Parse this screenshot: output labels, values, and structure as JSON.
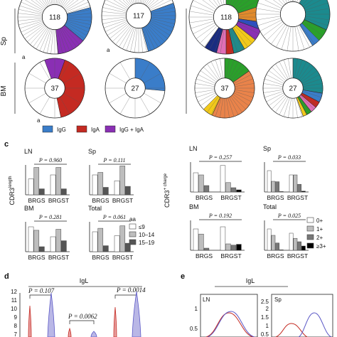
{
  "top": {
    "row_labels": [
      "Sp",
      "BM"
    ],
    "a_marks": [
      "a",
      "a",
      "a"
    ],
    "pie_counts": [
      "118",
      "117",
      "37",
      "27",
      "118",
      "37",
      "27"
    ],
    "legend": [
      {
        "label": "IgG",
        "color": "#3a7dc9"
      },
      {
        "label": "IgA",
        "color": "#c42a22"
      },
      {
        "label": "IgG + IgA",
        "color": "#8a2fb4"
      }
    ]
  },
  "panel_c": {
    "letter": "c",
    "left": {
      "ylabel": "CDR3",
      "ylabel_sup": "length",
      "subplots": [
        {
          "title": "LN",
          "pval": "P = 0.960",
          "categories": [
            "BRGS",
            "BRGST"
          ]
        },
        {
          "title": "Sp",
          "pval": "P = 0.111",
          "categories": [
            "BRGS",
            "BRGST"
          ]
        },
        {
          "title": "BM",
          "pval": "P = 0.281",
          "categories": [
            "BRGS",
            "BRGST"
          ]
        },
        {
          "title": "Total",
          "pval": "P = 0.061",
          "categories": [
            "BRGS",
            "BRGST"
          ]
        }
      ],
      "legend_title": "aa",
      "legend": [
        {
          "label": "≤9",
          "color": "#ffffff"
        },
        {
          "label": "10–14",
          "color": "#bdbdbd"
        },
        {
          "label": "15–19",
          "color": "#555555"
        }
      ]
    },
    "right": {
      "ylabel": "CDR3",
      "ylabel_sup": "+ charge",
      "subplots": [
        {
          "title": "LN",
          "pval": "P = 0.257",
          "categories": [
            "BRGS",
            "BRGST"
          ]
        },
        {
          "title": "Sp",
          "pval": "P = 0.033",
          "categories": [
            "BRGS",
            "BRGST"
          ]
        },
        {
          "title": "BM",
          "pval": "P = 0.192",
          "categories": [
            "BRGS",
            "BRGST"
          ]
        },
        {
          "title": "Total",
          "pval": "P = 0.025",
          "categories": [
            "BRGS",
            "BRGST"
          ]
        }
      ],
      "legend": [
        {
          "label": "0+",
          "color": "#ffffff"
        },
        {
          "label": "1+",
          "color": "#bdbdbd"
        },
        {
          "label": "2+",
          "color": "#777777"
        },
        {
          "label": "≥3+",
          "color": "#000000"
        }
      ]
    }
  },
  "panel_d": {
    "letter": "d",
    "title": "IgL",
    "pvals": [
      "P = 0.107",
      "P = 0.0062",
      "P = 0.0014"
    ],
    "yticks": [
      "12",
      "11",
      "10",
      "9",
      "8",
      "7"
    ]
  },
  "panel_e": {
    "letter": "e",
    "title": "IgL",
    "subplots": [
      {
        "title": "LN",
        "yticks": [
          "1",
          "0.5"
        ]
      },
      {
        "title": "Sp",
        "yticks": [
          "2.5",
          "2",
          "1.5",
          "1",
          "0.5"
        ]
      }
    ]
  },
  "chart_data": [
    {
      "panel": "c-left",
      "type": "bar",
      "title": "LN",
      "categories": [
        "BRGS",
        "BRGST"
      ],
      "series": [
        {
          "name": "≤9",
          "values": [
            32,
            40
          ]
        },
        {
          "name": "10–14",
          "values": [
            55,
            55
          ]
        },
        {
          "name": "15–19",
          "values": [
            12,
            12
          ]
        }
      ],
      "ylim": [
        0,
        60
      ]
    },
    {
      "panel": "c-left",
      "type": "bar",
      "title": "Sp",
      "categories": [
        "BRGS",
        "BRGST"
      ],
      "series": [
        {
          "name": "≤9",
          "values": [
            40,
            28
          ]
        },
        {
          "name": "10–14",
          "values": [
            45,
            58
          ]
        },
        {
          "name": "15–19",
          "values": [
            15,
            17
          ]
        }
      ],
      "ylim": [
        0,
        60
      ]
    },
    {
      "panel": "c-left",
      "type": "bar",
      "title": "BM",
      "categories": [
        "BRGS",
        "BRGST"
      ],
      "series": [
        {
          "name": "≤9",
          "values": [
            50,
            30
          ]
        },
        {
          "name": "10–14",
          "values": [
            43,
            45
          ]
        },
        {
          "name": "15–19",
          "values": [
            10,
            22
          ]
        }
      ],
      "ylim": [
        0,
        60
      ]
    },
    {
      "panel": "c-left",
      "type": "bar",
      "title": "Total",
      "categories": [
        "BRGS",
        "BRGST"
      ],
      "series": [
        {
          "name": "≤9",
          "values": [
            40,
            32
          ]
        },
        {
          "name": "10–14",
          "values": [
            47,
            52
          ]
        },
        {
          "name": "15–19",
          "values": [
            12,
            17
          ]
        }
      ],
      "ylim": [
        0,
        60
      ]
    },
    {
      "panel": "c-right",
      "type": "bar",
      "title": "LN",
      "categories": [
        "BRGS",
        "BRGST"
      ],
      "series": [
        {
          "name": "0+",
          "values": [
            45,
            62
          ]
        },
        {
          "name": "1+",
          "values": [
            40,
            22
          ]
        },
        {
          "name": "2+",
          "values": [
            15,
            10
          ]
        },
        {
          "name": "≥3+",
          "values": [
            0,
            5
          ]
        }
      ],
      "ylim": [
        0,
        70
      ]
    },
    {
      "panel": "c-right",
      "type": "bar",
      "title": "Sp",
      "categories": [
        "BRGS",
        "BRGST"
      ],
      "series": [
        {
          "name": "0+",
          "values": [
            50,
            40
          ]
        },
        {
          "name": "1+",
          "values": [
            25,
            40
          ]
        },
        {
          "name": "2+",
          "values": [
            24,
            18
          ]
        },
        {
          "name": "≥3+",
          "values": [
            1,
            2
          ]
        }
      ],
      "ylim": [
        0,
        70
      ]
    },
    {
      "panel": "c-right",
      "type": "bar",
      "title": "BM",
      "categories": [
        "BRGS",
        "BRGST"
      ],
      "series": [
        {
          "name": "0+",
          "values": [
            50,
            55
          ]
        },
        {
          "name": "1+",
          "values": [
            38,
            15
          ]
        },
        {
          "name": "2+",
          "values": [
            5,
            12
          ]
        },
        {
          "name": "≥3+",
          "values": [
            0,
            14
          ]
        }
      ],
      "ylim": [
        0,
        70
      ]
    },
    {
      "panel": "c-right",
      "type": "bar",
      "title": "Total",
      "categories": [
        "BRGS",
        "BRGST"
      ],
      "series": [
        {
          "name": "0+",
          "values": [
            50,
            40
          ]
        },
        {
          "name": "1+",
          "values": [
            35,
            28
          ]
        },
        {
          "name": "2+",
          "values": [
            17,
            20
          ]
        },
        {
          "name": "≥3+",
          "values": [
            1,
            10
          ]
        }
      ],
      "ylim": [
        0,
        70
      ]
    }
  ]
}
